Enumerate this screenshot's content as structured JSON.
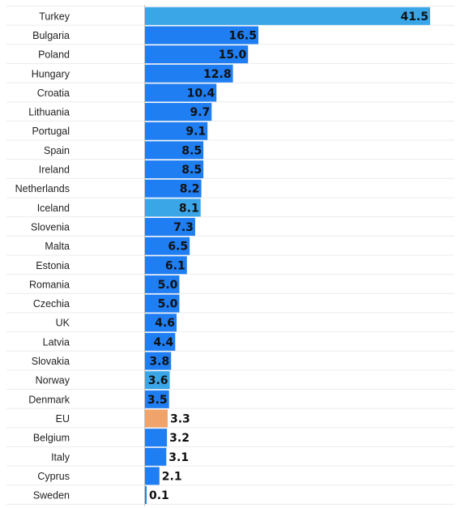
{
  "chart_data": {
    "type": "bar",
    "orientation": "horizontal",
    "categories": [
      "Turkey",
      "Bulgaria",
      "Poland",
      "Hungary",
      "Croatia",
      "Lithuania",
      "Portugal",
      "Spain",
      "Ireland",
      "Netherlands",
      "Iceland",
      "Slovenia",
      "Malta",
      "Estonia",
      "Romania",
      "Czechia",
      "UK",
      "Latvia",
      "Slovakia",
      "Norway",
      "Denmark",
      "EU",
      "Belgium",
      "Italy",
      "Cyprus",
      "Sweden"
    ],
    "values": [
      41.5,
      16.5,
      15.0,
      12.8,
      10.4,
      9.7,
      9.1,
      8.5,
      8.5,
      8.2,
      8.1,
      7.3,
      6.5,
      6.1,
      5.0,
      5.0,
      4.6,
      4.4,
      3.8,
      3.6,
      3.5,
      3.3,
      3.2,
      3.1,
      2.1,
      0.1
    ],
    "value_labels": [
      "41.5",
      "16.5",
      "15.0",
      "12.8",
      "10.4",
      "9.7",
      "9.1",
      "8.5",
      "8.5",
      "8.2",
      "8.1",
      "7.3",
      "6.5",
      "6.1",
      "5.0",
      "5.0",
      "4.6",
      "4.4",
      "3.8",
      "3.6",
      "3.5",
      "3.3",
      "3.2",
      "3.1",
      "2.1",
      "0.1"
    ],
    "bar_colors": [
      "#3aa6e8",
      "#1f7ef2",
      "#1f7ef2",
      "#1f7ef2",
      "#1f7ef2",
      "#1f7ef2",
      "#1f7ef2",
      "#1f7ef2",
      "#1f7ef2",
      "#1f7ef2",
      "#3aa6e8",
      "#1f7ef2",
      "#1f7ef2",
      "#1f7ef2",
      "#1f7ef2",
      "#1f7ef2",
      "#1f7ef2",
      "#1f7ef2",
      "#1f7ef2",
      "#3aa6e8",
      "#1f7ef2",
      "#f0a46c",
      "#1f7ef2",
      "#1f7ef2",
      "#1f7ef2",
      "#1f7ef2"
    ],
    "xlim": [
      0,
      41.5
    ],
    "title": "",
    "xlabel": "",
    "ylabel": "",
    "grid": true,
    "legend": "none"
  }
}
